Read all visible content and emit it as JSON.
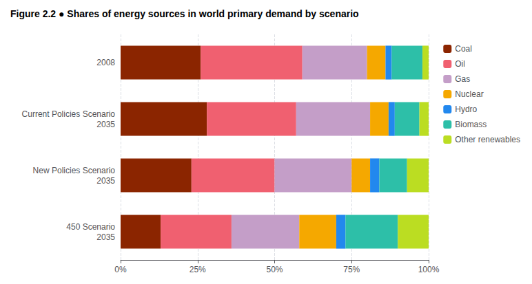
{
  "chart_data": {
    "type": "bar",
    "orientation": "horizontal",
    "stacked": true,
    "title": "Figure 2.2 ● Shares of energy sources in world primary demand by scenario",
    "categories": [
      "2008",
      "Current Policies Scenario\n2035",
      "New Policies Scenario\n2035",
      "450 Scenario\n2035"
    ],
    "series": [
      {
        "name": "Coal",
        "color": "#8B2500",
        "values": [
          26.0,
          28.0,
          23.0,
          13.0
        ]
      },
      {
        "name": "Oil",
        "color": "#F06070",
        "values": [
          33.0,
          29.0,
          27.0,
          23.0
        ]
      },
      {
        "name": "Gas",
        "color": "#C49EC8",
        "values": [
          21.0,
          24.0,
          25.0,
          22.0
        ]
      },
      {
        "name": "Nuclear",
        "color": "#F5A800",
        "values": [
          6.0,
          6.0,
          6.0,
          12.0
        ]
      },
      {
        "name": "Hydro",
        "color": "#2288EE",
        "values": [
          2.0,
          2.0,
          3.0,
          3.0
        ]
      },
      {
        "name": "Biomass",
        "color": "#2DBFA8",
        "values": [
          10.0,
          8.0,
          9.0,
          17.0
        ]
      },
      {
        "name": "Other renewables",
        "color": "#BBDD22",
        "values": [
          2.0,
          3.0,
          7.0,
          10.0
        ]
      }
    ],
    "xlim": [
      0,
      100
    ],
    "xticks": [
      {
        "value": 0,
        "label": "0%"
      },
      {
        "value": 25,
        "label": "25%"
      },
      {
        "value": 50,
        "label": "50%"
      },
      {
        "value": 75,
        "label": "75%"
      },
      {
        "value": 100,
        "label": "100%"
      }
    ],
    "grid": true,
    "legend": "right"
  }
}
